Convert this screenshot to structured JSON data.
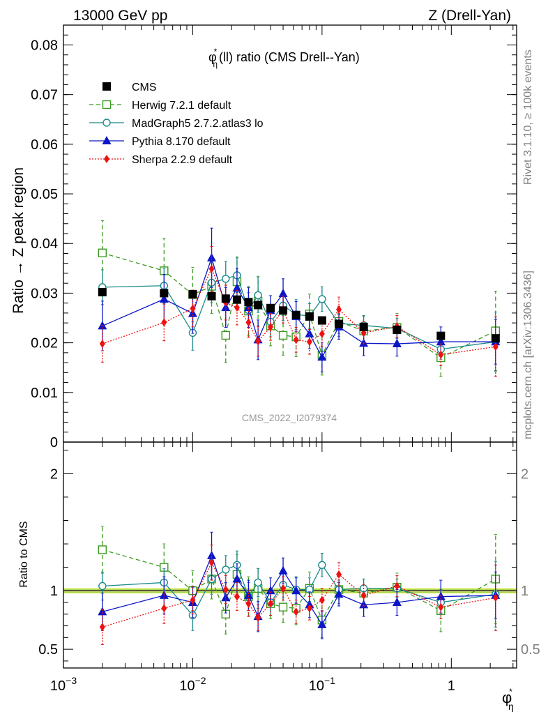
{
  "header": {
    "left": "13000 GeV pp",
    "right": "Z (Drell-Yan)"
  },
  "side_text": {
    "rivet": "Rivet 3.1.10, ≥ 100k events",
    "mcplots": "mcplots.cern.ch [arXiv:1306.3436]"
  },
  "watermark": "CMS_2022_I2079374",
  "chart_data": [
    {
      "type": "scatter",
      "panel": "main",
      "title_main": "φ",
      "title_sup": "*",
      "title_sub": "η",
      "title_rest": "(ll) ratio (CMS Drell--Yan)",
      "ylabel": "Ratio → Z peak region",
      "xscale": "log",
      "xlim": [
        0.001,
        3.2
      ],
      "ylim": [
        0,
        0.084
      ],
      "yticks": [
        "0",
        "0.01",
        "0.02",
        "0.03",
        "0.04",
        "0.05",
        "0.06",
        "0.07",
        "0.08"
      ],
      "legend_position": "top-left",
      "x": [
        0.002,
        0.006,
        0.01,
        0.014,
        0.018,
        0.022,
        0.027,
        0.032,
        0.04,
        0.05,
        0.063,
        0.08,
        0.1,
        0.135,
        0.21,
        0.38,
        0.83,
        2.2
      ],
      "series": [
        {
          "name": "CMS",
          "color": "#000000",
          "marker": "filled-square",
          "values": [
            0.0302,
            0.03,
            0.0298,
            0.0294,
            0.0289,
            0.0287,
            0.0282,
            0.0276,
            0.027,
            0.0265,
            0.0256,
            0.0253,
            0.0245,
            0.0238,
            0.0232,
            0.0226,
            0.0214,
            0.0209
          ],
          "errors": [
            0.0008,
            0.0008,
            0.0008,
            0.0007,
            0.0007,
            0.0007,
            0.0007,
            0.0007,
            0.0007,
            0.0006,
            0.0006,
            0.0006,
            0.0006,
            0.0005,
            0.0005,
            0.0005,
            0.0005,
            0.0005
          ]
        },
        {
          "name": "Herwig 7.2.1 default",
          "color": "#3a9a1f",
          "marker": "open-square",
          "line": "dashed",
          "values": [
            0.0381,
            0.0345,
            0.0297,
            0.0314,
            0.0215,
            0.0323,
            0.0264,
            0.0284,
            0.0234,
            0.0215,
            0.0212,
            0.0258,
            0.0175,
            0.0243,
            0.0224,
            0.0231,
            0.017,
            0.0224
          ],
          "errors": [
            0.0065,
            0.0065,
            0.0055,
            0.0055,
            0.0055,
            0.005,
            0.005,
            0.005,
            0.004,
            0.004,
            0.004,
            0.004,
            0.004,
            0.003,
            0.003,
            0.0028,
            0.0038,
            0.008
          ]
        },
        {
          "name": "MadGraph5 2.7.2.atlas3 lo",
          "color": "#1a8a8a",
          "marker": "open-circle",
          "line": "solid",
          "values": [
            0.0312,
            0.0315,
            0.022,
            0.0321,
            0.0329,
            0.0336,
            0.0266,
            0.0296,
            0.0242,
            0.0275,
            0.0257,
            0.0254,
            0.0288,
            0.0239,
            0.0235,
            0.0229,
            0.0187,
            0.0202
          ],
          "errors": [
            0.0035,
            0.0035,
            0.0035,
            0.004,
            0.0035,
            0.0035,
            0.0035,
            0.0035,
            0.003,
            0.003,
            0.003,
            0.0025,
            0.0025,
            0.002,
            0.002,
            0.002,
            0.002,
            0.006
          ]
        },
        {
          "name": "Pythia 8.170 default",
          "color": "#0b16c8",
          "marker": "filled-triangle",
          "line": "solid",
          "values": [
            0.0234,
            0.0288,
            0.0259,
            0.0371,
            0.0271,
            0.031,
            0.0271,
            0.0206,
            0.0265,
            0.0299,
            0.0253,
            0.0218,
            0.0171,
            0.0232,
            0.0199,
            0.0198,
            0.0202,
            0.0202
          ],
          "errors": [
            0.005,
            0.005,
            0.004,
            0.006,
            0.004,
            0.004,
            0.004,
            0.004,
            0.003,
            0.003,
            0.003,
            0.003,
            0.003,
            0.0025,
            0.0025,
            0.0025,
            0.003,
            0.0045
          ]
        },
        {
          "name": "Sherpa 2.2.9 default",
          "color": "#ee1111",
          "marker": "filled-diamond",
          "line": "dotted",
          "values": [
            0.0198,
            0.0241,
            0.0269,
            0.0349,
            0.0281,
            0.0271,
            0.0241,
            0.0203,
            0.0232,
            0.0267,
            0.0206,
            0.0202,
            0.0218,
            0.0267,
            0.022,
            0.0233,
            0.0176,
            0.0192
          ],
          "errors": [
            0.0037,
            0.0037,
            0.0037,
            0.0045,
            0.0035,
            0.0035,
            0.003,
            0.003,
            0.0027,
            0.0027,
            0.0025,
            0.0025,
            0.0025,
            0.0025,
            0.0022,
            0.0022,
            0.0022,
            0.006
          ]
        }
      ]
    },
    {
      "type": "scatter",
      "panel": "ratio",
      "ylabel": "Ratio to CMS",
      "xlabel_main": "φ",
      "xlabel_sup": "*",
      "xlabel_sub": "η",
      "xscale": "log",
      "xlim": [
        0.001,
        3.2
      ],
      "ylim": [
        0.34,
        2.27
      ],
      "yticks": [
        "0.5",
        "1",
        "2"
      ],
      "xticks": [
        {
          "base": "10",
          "exp": "−3",
          "value": 0.001
        },
        {
          "base": "10",
          "exp": "−2",
          "value": 0.01
        },
        {
          "base": "10",
          "exp": "−1",
          "value": 0.1
        },
        {
          "base": "1",
          "exp": "",
          "value": 1
        }
      ],
      "reference_band": {
        "value": 1.0,
        "color": "#f5f59a"
      },
      "x": [
        0.002,
        0.006,
        0.01,
        0.014,
        0.018,
        0.022,
        0.027,
        0.032,
        0.04,
        0.05,
        0.063,
        0.08,
        0.1,
        0.135,
        0.21,
        0.38,
        0.83,
        2.2
      ],
      "series": [
        {
          "name": "Herwig 7.2.1 default",
          "values": [
            1.35,
            1.2,
            1.0,
            1.1,
            0.8,
            1.14,
            0.95,
            1.02,
            0.89,
            0.86,
            0.85,
            1.02,
            0.75,
            1.01,
            0.98,
            1.03,
            0.83,
            1.1
          ],
          "errors": [
            0.2,
            0.2,
            0.17,
            0.17,
            0.17,
            0.17,
            0.17,
            0.17,
            0.13,
            0.13,
            0.14,
            0.14,
            0.15,
            0.12,
            0.12,
            0.12,
            0.18,
            0.38
          ]
        },
        {
          "name": "MadGraph5 2.7.2.atlas3 lo",
          "values": [
            1.04,
            1.07,
            0.79,
            1.1,
            1.18,
            1.22,
            0.95,
            1.07,
            0.9,
            1.05,
            1.01,
            1.01,
            1.22,
            1.01,
            1.02,
            1.02,
            0.9,
            0.97
          ],
          "errors": [
            0.12,
            0.12,
            0.13,
            0.13,
            0.12,
            0.12,
            0.12,
            0.12,
            0.11,
            0.11,
            0.11,
            0.1,
            0.1,
            0.08,
            0.08,
            0.08,
            0.1,
            0.28
          ]
        },
        {
          "name": "Pythia 8.170 default",
          "values": [
            0.82,
            0.96,
            0.9,
            1.3,
            0.94,
            1.1,
            0.96,
            0.78,
            1.0,
            1.17,
            1.0,
            0.88,
            0.71,
            0.97,
            0.88,
            0.9,
            0.95,
            0.96
          ],
          "errors": [
            0.16,
            0.16,
            0.13,
            0.2,
            0.13,
            0.13,
            0.13,
            0.13,
            0.11,
            0.11,
            0.11,
            0.11,
            0.12,
            0.1,
            0.1,
            0.11,
            0.14,
            0.2
          ]
        },
        {
          "name": "Sherpa 2.2.9 default",
          "values": [
            0.69,
            0.85,
            0.92,
            1.24,
            1.01,
            0.95,
            0.89,
            0.77,
            0.89,
            1.02,
            0.82,
            0.85,
            0.92,
            1.14,
            0.96,
            1.04,
            0.86,
            0.94
          ],
          "errors": [
            0.15,
            0.13,
            0.12,
            0.15,
            0.12,
            0.12,
            0.11,
            0.11,
            0.1,
            0.1,
            0.1,
            0.1,
            0.1,
            0.1,
            0.09,
            0.09,
            0.1,
            0.28
          ]
        }
      ]
    }
  ]
}
